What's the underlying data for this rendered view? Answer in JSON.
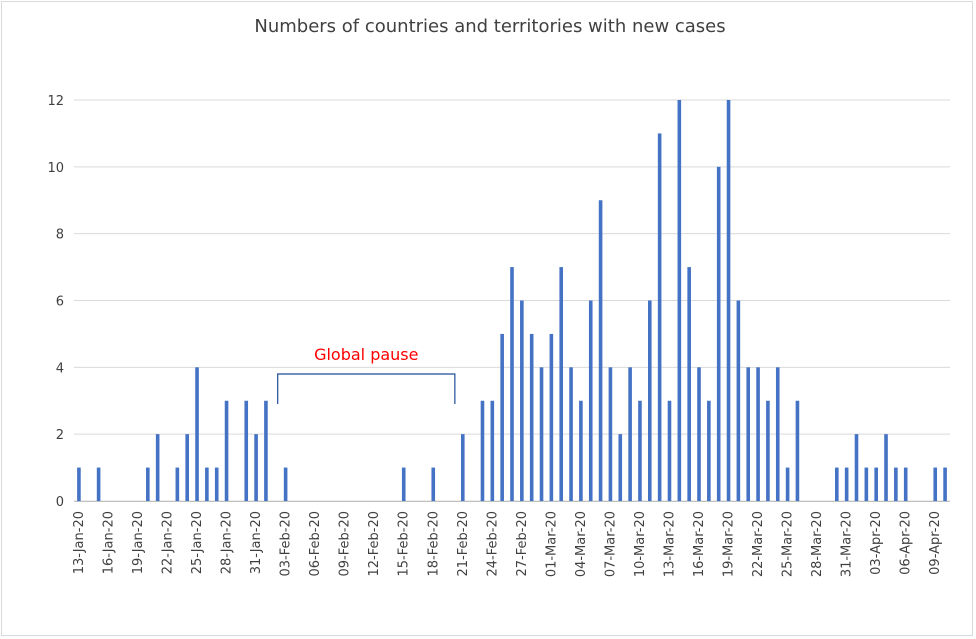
{
  "chart_data": {
    "type": "bar",
    "title": "Numbers of countries and territories with new cases",
    "xlabel": "",
    "ylabel": "",
    "ylim": [
      0,
      12
    ],
    "yticks": [
      "0",
      "2",
      "4",
      "6",
      "8",
      "10",
      "12"
    ],
    "grid": true,
    "bar_color": "#4472c4",
    "axis_text_color": "#404040",
    "gridline_color": "#d9d9d9",
    "categories": [
      "13-Jan-20",
      "14-Jan-20",
      "15-Jan-20",
      "16-Jan-20",
      "17-Jan-20",
      "18-Jan-20",
      "19-Jan-20",
      "20-Jan-20",
      "21-Jan-20",
      "22-Jan-20",
      "23-Jan-20",
      "24-Jan-20",
      "25-Jan-20",
      "26-Jan-20",
      "27-Jan-20",
      "28-Jan-20",
      "29-Jan-20",
      "30-Jan-20",
      "31-Jan-20",
      "01-Feb-20",
      "02-Feb-20",
      "03-Feb-20",
      "04-Feb-20",
      "05-Feb-20",
      "06-Feb-20",
      "07-Feb-20",
      "08-Feb-20",
      "09-Feb-20",
      "10-Feb-20",
      "11-Feb-20",
      "12-Feb-20",
      "13-Feb-20",
      "14-Feb-20",
      "15-Feb-20",
      "16-Feb-20",
      "17-Feb-20",
      "18-Feb-20",
      "19-Feb-20",
      "20-Feb-20",
      "21-Feb-20",
      "22-Feb-20",
      "23-Feb-20",
      "24-Feb-20",
      "25-Feb-20",
      "26-Feb-20",
      "27-Feb-20",
      "28-Feb-20",
      "29-Feb-20",
      "01-Mar-20",
      "02-Mar-20",
      "03-Mar-20",
      "04-Mar-20",
      "05-Mar-20",
      "06-Mar-20",
      "07-Mar-20",
      "08-Mar-20",
      "09-Mar-20",
      "10-Mar-20",
      "11-Mar-20",
      "12-Mar-20",
      "13-Mar-20",
      "14-Mar-20",
      "15-Mar-20",
      "16-Mar-20",
      "17-Mar-20",
      "18-Mar-20",
      "19-Mar-20",
      "20-Mar-20",
      "21-Mar-20",
      "22-Mar-20",
      "23-Mar-20",
      "24-Mar-20",
      "25-Mar-20",
      "26-Mar-20",
      "27-Mar-20",
      "28-Mar-20",
      "29-Mar-20",
      "30-Mar-20",
      "31-Mar-20",
      "01-Apr-20",
      "02-Apr-20",
      "03-Apr-20",
      "04-Apr-20",
      "05-Apr-20",
      "06-Apr-20",
      "07-Apr-20",
      "08-Apr-20",
      "09-Apr-20",
      "10-Apr-20"
    ],
    "values": [
      1,
      0,
      1,
      0,
      0,
      0,
      0,
      1,
      2,
      0,
      1,
      2,
      4,
      1,
      1,
      3,
      0,
      3,
      2,
      3,
      0,
      1,
      0,
      0,
      0,
      0,
      0,
      0,
      0,
      0,
      0,
      0,
      0,
      1,
      0,
      0,
      1,
      0,
      0,
      2,
      0,
      3,
      3,
      5,
      7,
      6,
      5,
      4,
      5,
      7,
      4,
      3,
      6,
      9,
      4,
      2,
      4,
      3,
      6,
      11,
      3,
      12,
      7,
      4,
      3,
      10,
      12,
      6,
      4,
      4,
      3,
      4,
      1,
      3,
      0,
      0,
      0,
      1,
      1,
      2,
      1,
      1,
      2,
      1,
      1,
      0,
      0,
      1,
      1
    ],
    "tick_labels": [
      "13-Jan-20",
      "16-Jan-20",
      "19-Jan-20",
      "22-Jan-20",
      "25-Jan-20",
      "28-Jan-20",
      "31-Jan-20",
      "03-Feb-20",
      "06-Feb-20",
      "09-Feb-20",
      "12-Feb-20",
      "15-Feb-20",
      "18-Feb-20",
      "21-Feb-20",
      "24-Feb-20",
      "27-Feb-20",
      "01-Mar-20",
      "04-Mar-20",
      "07-Mar-20",
      "10-Mar-20",
      "13-Mar-20",
      "16-Mar-20",
      "19-Mar-20",
      "22-Mar-20",
      "25-Mar-20",
      "28-Mar-20",
      "31-Mar-20",
      "03-Apr-20",
      "06-Apr-20",
      "09-Apr-20"
    ],
    "annotations": [
      {
        "text": "Global pause",
        "color": "#ff0000",
        "bracket_color": "#1f4e9a",
        "from_category": "03-Feb-20",
        "to_category": "21-Feb-20",
        "level": 3.8
      }
    ]
  }
}
